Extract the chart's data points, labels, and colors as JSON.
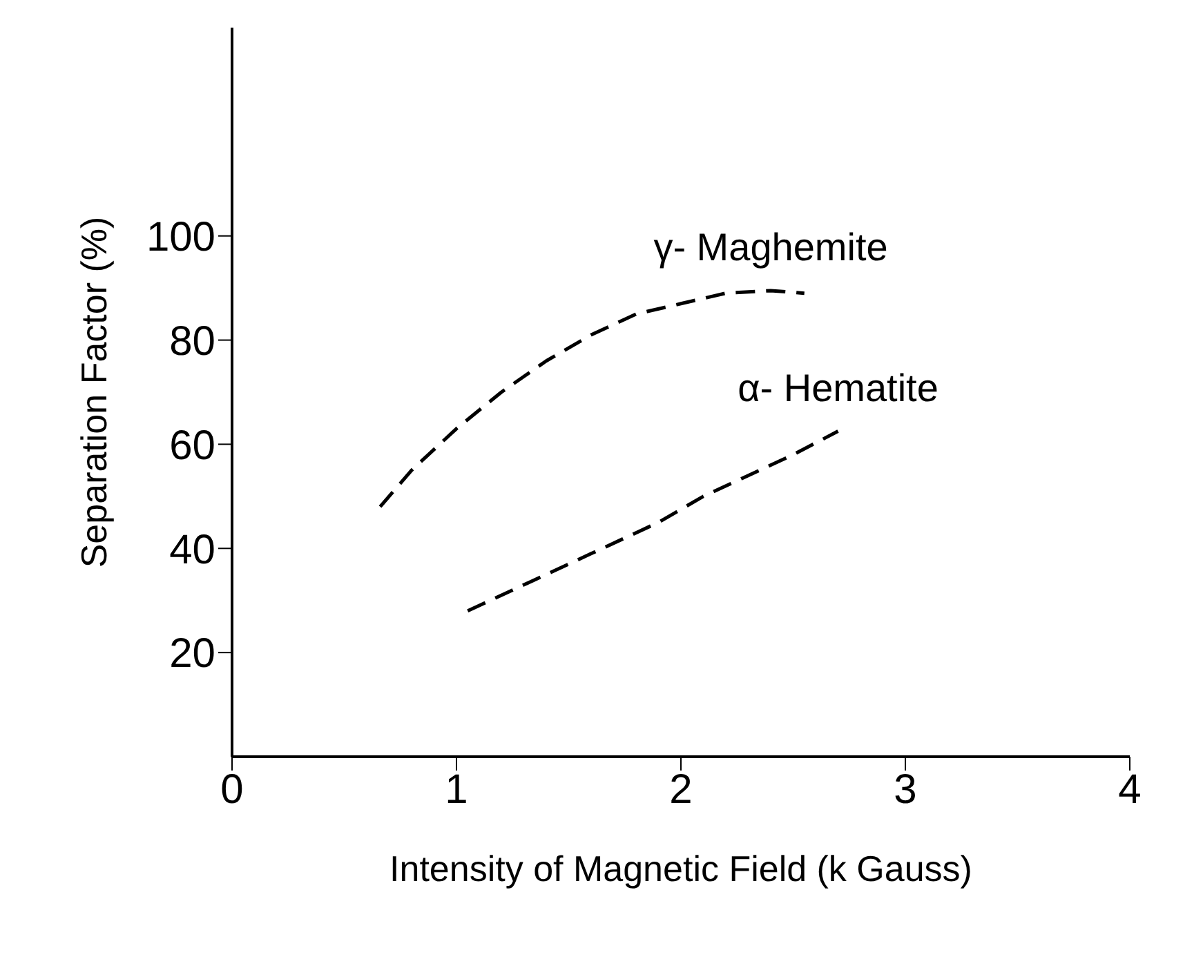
{
  "chart_data": {
    "type": "line",
    "xlabel": "Intensity of Magnetic Field (k Gauss)",
    "ylabel": "Separation Factor   (%)",
    "xlim": [
      0,
      4
    ],
    "xticks": [
      0,
      1,
      2,
      3,
      4
    ],
    "ylim": [
      0,
      140
    ],
    "yticks": [
      20,
      40,
      60,
      80,
      100
    ],
    "grid": false,
    "legend": false,
    "marker": "none",
    "series": [
      {
        "name": "γ- Maghemite",
        "color": "#000000",
        "line_style": "dashed",
        "x": [
          0.66,
          0.8,
          1.0,
          1.2,
          1.4,
          1.6,
          1.8,
          2.0,
          2.2,
          2.4,
          2.55
        ],
        "values": [
          48,
          55,
          63,
          70,
          76,
          81,
          85,
          87,
          89,
          89.5,
          89
        ]
      },
      {
        "name": "α- Hematite",
        "color": "#000000",
        "line_style": "dashed",
        "x": [
          1.05,
          1.3,
          1.6,
          1.9,
          2.1,
          2.3,
          2.5,
          2.7
        ],
        "values": [
          28,
          33,
          39,
          45,
          50,
          54,
          58,
          62.5
        ]
      }
    ]
  }
}
